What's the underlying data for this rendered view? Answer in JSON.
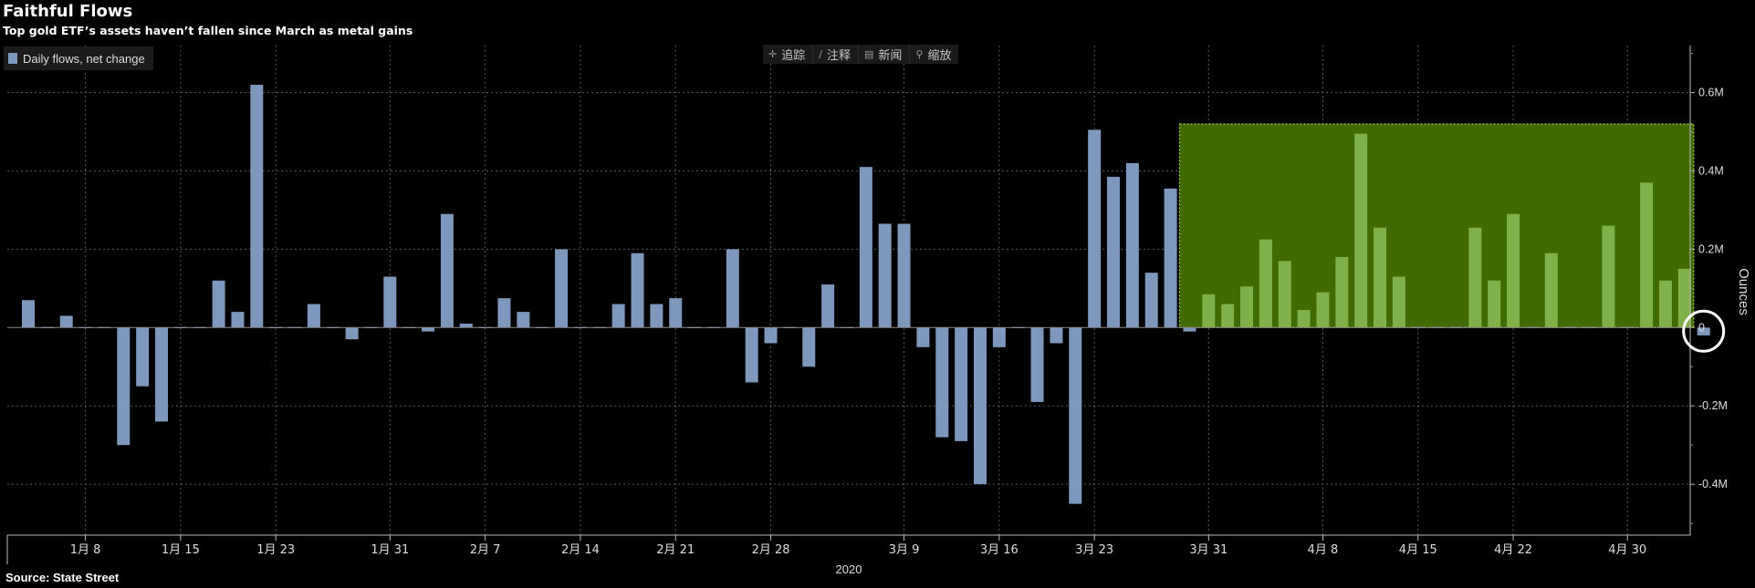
{
  "title": "Faithful Flows",
  "subtitle": "Top gold ETF’s assets haven’t fallen since March as metal gains",
  "source": "Source: State Street",
  "legend": {
    "label": "Daily flows, net change"
  },
  "toolbar": {
    "items": [
      {
        "icon": "crosshair-icon",
        "glyph": "✛",
        "label": "追踪"
      },
      {
        "icon": "pencil-icon",
        "glyph": "∕",
        "label": "注释"
      },
      {
        "icon": "news-icon",
        "glyph": "▤",
        "label": "新闻"
      },
      {
        "icon": "zoom-icon",
        "glyph": "⚲",
        "label": "缩放"
      }
    ]
  },
  "colors": {
    "bar": "#7e97bd",
    "highlight_fill": "#3f6b00",
    "highlight_border": "#a8d83a",
    "circle": "#ffffff",
    "grid": "#555555"
  },
  "chart_data": {
    "type": "bar",
    "title": "Faithful Flows",
    "subtitle": "Top gold ETF’s assets haven’t fallen since March as metal gains",
    "ylabel": "Ounces",
    "ylim": [
      -0.53,
      0.72
    ],
    "y_ticks": [
      -0.4,
      -0.2,
      0,
      0.2,
      0.4,
      0.6
    ],
    "y_tick_labels": [
      "-0.4M",
      "-0.2M",
      "0",
      "0.2M",
      "0.4M",
      "0.6M"
    ],
    "x_tick_labels": [
      "1月 8",
      "1月 15",
      "1月 23",
      "1月 31",
      "2月 7",
      "2月 14",
      "2月 21",
      "2月 28",
      "3月 9",
      "3月 16",
      "3月 23",
      "3月 31",
      "4月 8",
      "4月 15",
      "4月 22",
      "4月 30"
    ],
    "x_tick_days": [
      3,
      8,
      13,
      19,
      24,
      29,
      34,
      39,
      46,
      51,
      56,
      62,
      68,
      73,
      78,
      84
    ],
    "year_label": "2020",
    "grid": true,
    "legend_position": "top-left",
    "highlight": {
      "from_day": 61,
      "to_day": 87,
      "y_top": 0.52
    },
    "marked_day": 88,
    "series": [
      {
        "name": "Daily flows, net change",
        "unit": "M oz",
        "values": [
          0.07,
          0.0,
          0.03,
          0.0,
          0.0,
          -0.3,
          -0.15,
          -0.24,
          0.0,
          0.0,
          0.12,
          0.04,
          0.62,
          0.0,
          0.0,
          0.06,
          0.0,
          -0.03,
          0.0,
          0.13,
          0.0,
          -0.01,
          0.29,
          0.01,
          0.0,
          0.075,
          0.04,
          0.0,
          0.2,
          0.0,
          0.0,
          0.06,
          0.19,
          0.06,
          0.075,
          0.0,
          0.0,
          0.2,
          -0.14,
          -0.04,
          0.0,
          -0.1,
          0.11,
          0.0,
          0.41,
          0.265,
          0.265,
          -0.05,
          -0.28,
          -0.29,
          -0.4,
          -0.05,
          0.0,
          -0.19,
          -0.04,
          -0.45,
          0.505,
          0.385,
          0.42,
          0.14,
          0.355,
          -0.01,
          0.085,
          0.06,
          0.105,
          0.225,
          0.17,
          0.045,
          0.09,
          0.18,
          0.495,
          0.255,
          0.13,
          0.0,
          0.0,
          0.0,
          0.255,
          0.12,
          0.29,
          0.0,
          0.19,
          0.0,
          0.0,
          0.26,
          0.0,
          0.37,
          0.12,
          0.15,
          -0.02
        ]
      }
    ]
  }
}
